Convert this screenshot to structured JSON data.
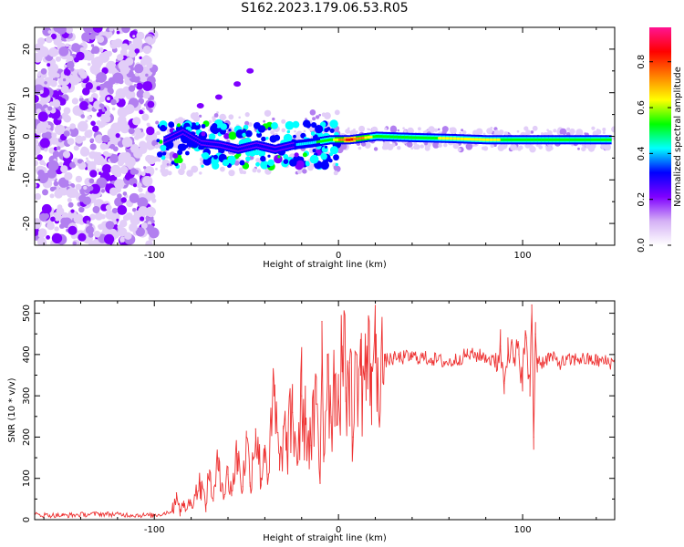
{
  "title": "S162.2023.179.06.53.R05",
  "chart_data": [
    {
      "type": "heatmap",
      "xlabel": "Height of straight line (km)",
      "ylabel": "Frequency (Hz)",
      "xlim": [
        -165,
        150
      ],
      "ylim": [
        -25,
        25
      ],
      "xticks": [
        -100,
        0,
        100
      ],
      "yticks": [
        -20,
        -10,
        0,
        10,
        20
      ],
      "noise_region": {
        "x": [
          -165,
          -100
        ],
        "y": [
          -25,
          25
        ]
      },
      "trace": [
        {
          "x": -95,
          "y": -1,
          "amp": 0.3
        },
        {
          "x": -85,
          "y": 1,
          "amp": 0.35
        },
        {
          "x": -75,
          "y": -1.5,
          "amp": 0.3
        },
        {
          "x": -65,
          "y": -2,
          "amp": 0.35
        },
        {
          "x": -55,
          "y": -3,
          "amp": 0.3
        },
        {
          "x": -45,
          "y": -2,
          "amp": 0.35
        },
        {
          "x": -35,
          "y": -3,
          "amp": 0.3
        },
        {
          "x": -25,
          "y": -2,
          "amp": 0.35
        },
        {
          "x": -15,
          "y": -1.5,
          "amp": 0.45
        },
        {
          "x": -5,
          "y": -0.8,
          "amp": 0.55
        },
        {
          "x": 5,
          "y": -0.8,
          "amp": 0.85
        },
        {
          "x": 20,
          "y": 0,
          "amp": 0.55
        },
        {
          "x": 40,
          "y": -0.3,
          "amp": 0.55
        },
        {
          "x": 60,
          "y": -0.5,
          "amp": 0.6
        },
        {
          "x": 80,
          "y": -0.8,
          "amp": 0.6
        },
        {
          "x": 100,
          "y": -0.8,
          "amp": 0.55
        },
        {
          "x": 120,
          "y": -0.8,
          "amp": 0.55
        },
        {
          "x": 148,
          "y": -0.8,
          "amp": 0.55
        }
      ],
      "streak": [
        {
          "x": -75,
          "y": 7
        },
        {
          "x": -65,
          "y": 9
        },
        {
          "x": -55,
          "y": 12
        },
        {
          "x": -48,
          "y": 15
        }
      ],
      "colorbar": {
        "label": "Normalized spectral amplitude",
        "range": [
          0,
          0.95
        ],
        "ticks": [
          "0.0",
          "0.2",
          "0.4",
          "0.6",
          "0.8"
        ],
        "colors": [
          "#ffffff",
          "#d4b0f5",
          "#7f00ff",
          "#0000ff",
          "#00ffff",
          "#00ff00",
          "#ffff00",
          "#ff7f00",
          "#ff0000",
          "#ff1493"
        ]
      }
    },
    {
      "type": "line",
      "xlabel": "Height of straight line (km)",
      "ylabel": "SNR (10 * v/v)",
      "xlim": [
        -165,
        150
      ],
      "ylim": [
        0,
        530
      ],
      "xticks": [
        -100,
        0,
        100
      ],
      "yticks": [
        0,
        100,
        200,
        300,
        400,
        500
      ],
      "color": "#ee3333",
      "series": [
        {
          "name": "SNR",
          "x": [
            -165,
            -150,
            -130,
            -110,
            -100,
            -95,
            -90,
            -88,
            -86,
            -84,
            -80,
            -75,
            -72,
            -70,
            -68,
            -65,
            -62,
            -60,
            -58,
            -55,
            -52,
            -50,
            -48,
            -45,
            -42,
            -40,
            -38,
            -35,
            -32,
            -30,
            -28,
            -25,
            -22,
            -20,
            -18,
            -15,
            -12,
            -10,
            -9,
            -8,
            -6,
            -4,
            -2,
            0,
            2,
            4,
            6,
            8,
            10,
            12,
            15,
            18,
            20,
            25,
            30,
            40,
            50,
            60,
            70,
            80,
            85,
            88,
            90,
            92,
            95,
            98,
            100,
            102,
            104,
            105,
            106,
            107,
            108,
            110,
            115,
            120,
            130,
            140,
            150
          ],
          "values": [
            12,
            10,
            14,
            11,
            10,
            15,
            22,
            65,
            25,
            30,
            40,
            90,
            35,
            120,
            45,
            150,
            60,
            110,
            70,
            160,
            80,
            200,
            90,
            220,
            100,
            180,
            110,
            300,
            120,
            220,
            170,
            260,
            140,
            300,
            230,
            180,
            280,
            90,
            480,
            150,
            400,
            250,
            350,
            300,
            420,
            320,
            380,
            200,
            400,
            350,
            360,
            370,
            380,
            385,
            390,
            395,
            390,
            380,
            400,
            395,
            380,
            420,
            330,
            440,
            380,
            400,
            360,
            440,
            300,
            520,
            200,
            450,
            390,
            380,
            395,
            380,
            390,
            385,
            380
          ]
        }
      ]
    }
  ]
}
